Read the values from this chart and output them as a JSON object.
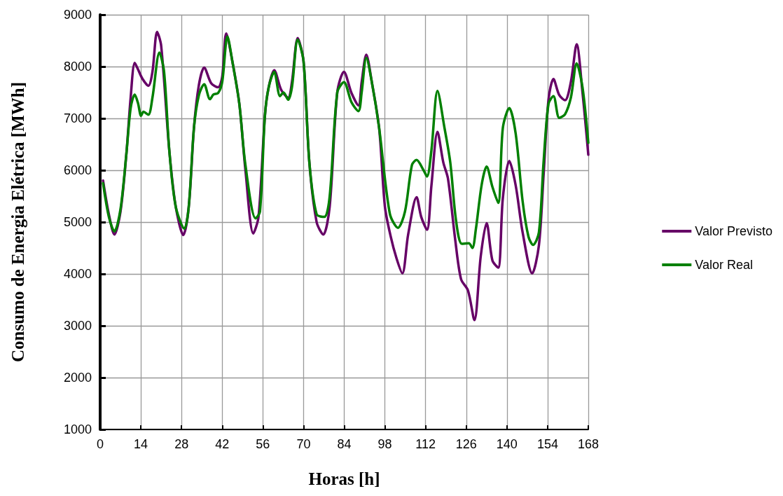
{
  "chart_data": {
    "type": "line",
    "xlabel": "Horas [h]",
    "ylabel": "Consumo de Energia Elétrica [MWh]",
    "xlim": [
      0,
      168
    ],
    "xticks": [
      0,
      14,
      28,
      42,
      56,
      70,
      84,
      98,
      112,
      126,
      140,
      154,
      168
    ],
    "ylim": [
      1000,
      9000
    ],
    "yticks": [
      1000,
      2000,
      3000,
      4000,
      5000,
      6000,
      7000,
      8000,
      9000
    ],
    "grid": true,
    "legend": "right",
    "marker": "none",
    "line_style": "solid",
    "series": [
      {
        "name": "Valor Previsto",
        "color": "#660066",
        "x": [
          1,
          3,
          4.9,
          7,
          9,
          10.5,
          11.9,
          13,
          14.6,
          16.6,
          18,
          19.6,
          21,
          23.8,
          26,
          28.6,
          30.5,
          32.3,
          34,
          35.8,
          38.2,
          40.6,
          42,
          43.4,
          45.5,
          47.9,
          50,
          52.7,
          54.5,
          56.7,
          58,
          59.9,
          62.3,
          64.7,
          66,
          68,
          70,
          72,
          74.5,
          76.8,
          79,
          81.6,
          83.9,
          86.5,
          88.9,
          90,
          91.6,
          93.5,
          96,
          98,
          100,
          102,
          104,
          106,
          108.9,
          110.5,
          112.5,
          114,
          116.1,
          118.1,
          119.7,
          122.2,
          124.2,
          126.6,
          128.8,
          131,
          133,
          135,
          137,
          138.6,
          140.8,
          143,
          145.4,
          148.7,
          151,
          152.6,
          154.3,
          156,
          158,
          160,
          162,
          164,
          166,
          168
        ],
        "values": [
          5800,
          5150,
          4760,
          5200,
          6300,
          7400,
          8070,
          7950,
          7760,
          7630,
          7900,
          8670,
          8400,
          6380,
          5300,
          4750,
          5300,
          6830,
          7650,
          7980,
          7680,
          7600,
          7800,
          8640,
          8100,
          7280,
          6000,
          4780,
          5100,
          7050,
          7600,
          7930,
          7550,
          7400,
          7700,
          8550,
          8100,
          6150,
          5000,
          4760,
          5300,
          7500,
          7900,
          7490,
          7250,
          7700,
          8230,
          7700,
          6820,
          5300,
          4720,
          4300,
          4010,
          4760,
          5480,
          5100,
          4850,
          5700,
          6740,
          6150,
          5840,
          4660,
          3900,
          3680,
          3110,
          4350,
          4980,
          4260,
          4120,
          5470,
          6180,
          5710,
          4800,
          4010,
          4550,
          5900,
          7360,
          7760,
          7450,
          7350,
          7700,
          8430,
          7500,
          6300
        ]
      },
      {
        "name": "Valor Real",
        "color": "#008000",
        "x": [
          1,
          3,
          4.9,
          7,
          9,
          10.5,
          11.9,
          13,
          14.1,
          14.9,
          16.6,
          18,
          20.4,
          22,
          23.8,
          26,
          29,
          30.5,
          32.3,
          34,
          35.8,
          37.8,
          39,
          40.6,
          42,
          43.8,
          45.5,
          47.9,
          50,
          53.5,
          55,
          56.7,
          58,
          59.9,
          61.9,
          63.1,
          64.7,
          66,
          68,
          70,
          72,
          74.5,
          77.2,
          79,
          81.6,
          83.9,
          86.5,
          88.9,
          90,
          91.6,
          93.5,
          96,
          99.7,
          102.5,
          104.9,
          107.3,
          108.9,
          111.3,
          112.5,
          114,
          116.1,
          118.5,
          120.5,
          122.5,
          124.5,
          126.9,
          128.1,
          129.3,
          131.3,
          133,
          135,
          137,
          138.6,
          140.8,
          143,
          145.4,
          147.4,
          149,
          151,
          152.6,
          154.3,
          156,
          158,
          160,
          162,
          164,
          166,
          168
        ],
        "values": [
          5750,
          5100,
          4820,
          5250,
          6300,
          7200,
          7460,
          7300,
          7050,
          7130,
          7070,
          7400,
          8270,
          7900,
          6380,
          5300,
          4870,
          5300,
          6830,
          7450,
          7660,
          7370,
          7460,
          7490,
          7700,
          8580,
          8100,
          7280,
          6100,
          5070,
          5200,
          7050,
          7600,
          7900,
          7430,
          7500,
          7360,
          7600,
          8520,
          8100,
          6150,
          5150,
          5100,
          5500,
          7500,
          7700,
          7310,
          7140,
          7500,
          8170,
          7700,
          6820,
          5160,
          4890,
          5200,
          6100,
          6200,
          6000,
          5880,
          6380,
          7530,
          6820,
          6150,
          5020,
          4580,
          4590,
          4500,
          4860,
          5720,
          6070,
          5680,
          5370,
          6820,
          7200,
          6710,
          5400,
          4720,
          4560,
          4800,
          6150,
          7280,
          7430,
          7010,
          7080,
          7400,
          8060,
          7600,
          6530
        ]
      }
    ]
  }
}
